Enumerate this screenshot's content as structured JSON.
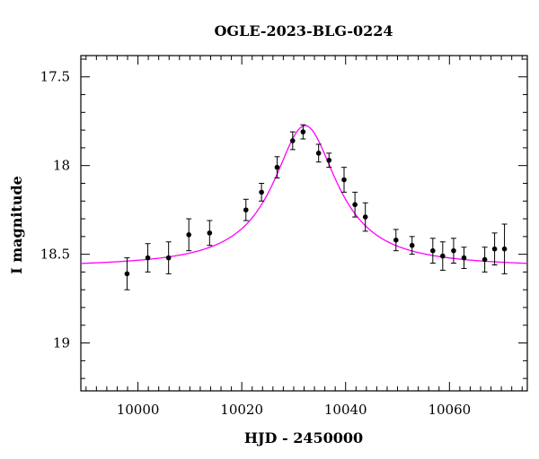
{
  "chart_data": {
    "type": "scatter",
    "title": "OGLE-2023-BLG-0224",
    "xlabel": "HJD - 2450000",
    "ylabel": "I magnitude",
    "xlim": [
      9989,
      10075
    ],
    "ylim": [
      19.27,
      17.38
    ],
    "y_inverted": true,
    "x_major_ticks": [
      10000,
      10020,
      10040,
      10060
    ],
    "x_tick_labels": [
      "10000",
      "10020",
      "10040",
      "10060"
    ],
    "x_minor_step": 2,
    "y_major_ticks": [
      17.5,
      18,
      18.5,
      19
    ],
    "y_tick_labels": [
      "17.5",
      "18",
      "18.5",
      "19"
    ],
    "y_minor_step": 0.1,
    "grid": false,
    "colors": {
      "points": "#000000",
      "model": "#ff00ff",
      "axes": "#000000"
    },
    "series": [
      {
        "kind": "points_with_errorbars",
        "points": [
          {
            "x": 9997.9,
            "y": 18.61,
            "err": 0.09
          },
          {
            "x": 10001.9,
            "y": 18.52,
            "err": 0.08
          },
          {
            "x": 10005.9,
            "y": 18.52,
            "err": 0.09
          },
          {
            "x": 10009.8,
            "y": 18.39,
            "err": 0.09
          },
          {
            "x": 10013.8,
            "y": 18.38,
            "err": 0.07
          },
          {
            "x": 10020.8,
            "y": 18.25,
            "err": 0.06
          },
          {
            "x": 10023.8,
            "y": 18.15,
            "err": 0.05
          },
          {
            "x": 10026.8,
            "y": 18.01,
            "err": 0.06
          },
          {
            "x": 10029.8,
            "y": 17.86,
            "err": 0.05
          },
          {
            "x": 10031.8,
            "y": 17.81,
            "err": 0.04
          },
          {
            "x": 10034.8,
            "y": 17.93,
            "err": 0.05
          },
          {
            "x": 10036.8,
            "y": 17.97,
            "err": 0.04
          },
          {
            "x": 10039.7,
            "y": 18.08,
            "err": 0.07
          },
          {
            "x": 10041.8,
            "y": 18.22,
            "err": 0.07
          },
          {
            "x": 10043.8,
            "y": 18.29,
            "err": 0.08
          },
          {
            "x": 10049.7,
            "y": 18.42,
            "err": 0.06
          },
          {
            "x": 10052.8,
            "y": 18.45,
            "err": 0.05
          },
          {
            "x": 10056.8,
            "y": 18.48,
            "err": 0.07
          },
          {
            "x": 10058.7,
            "y": 18.51,
            "err": 0.08
          },
          {
            "x": 10060.8,
            "y": 18.48,
            "err": 0.07
          },
          {
            "x": 10062.8,
            "y": 18.52,
            "err": 0.06
          },
          {
            "x": 10066.8,
            "y": 18.53,
            "err": 0.07
          },
          {
            "x": 10068.7,
            "y": 18.47,
            "err": 0.09
          },
          {
            "x": 10070.6,
            "y": 18.47,
            "err": 0.14
          }
        ]
      },
      {
        "kind": "model_curve",
        "model": {
          "baseline": 18.575,
          "peak_time": 10032.2,
          "amplitude": 0.8,
          "width": 7.5
        }
      }
    ]
  }
}
